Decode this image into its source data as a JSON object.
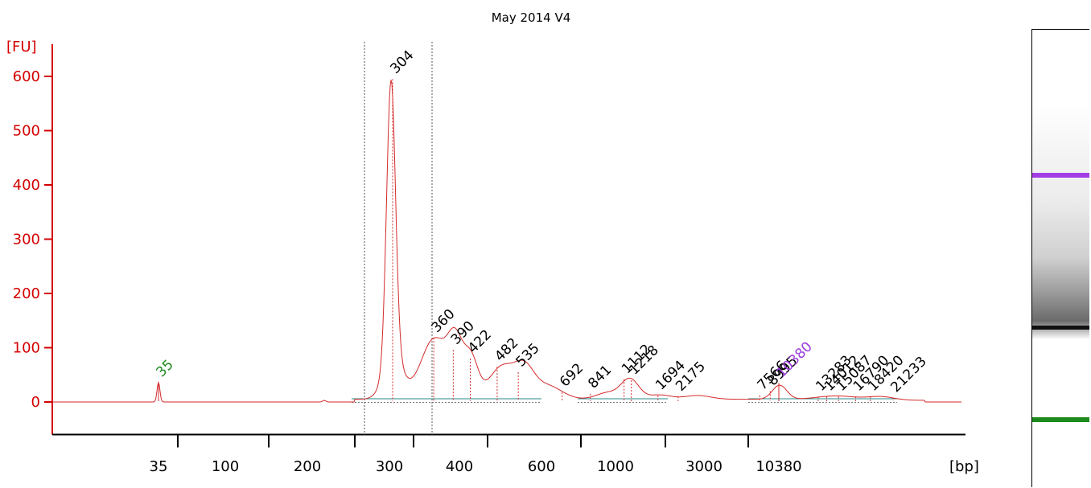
{
  "colors": {
    "axis": "#d40000",
    "trace": "#d42a2a",
    "baseline": "#2a8a8a",
    "marker_lower": "#1e8a1e",
    "marker_upper": "#9b3dde",
    "text": "#000000"
  },
  "chart_data": {
    "type": "line",
    "title": "May 2014 V4",
    "ylabel": "[FU]",
    "xlabel": "[bp]",
    "ylim": [
      -60,
      640
    ],
    "y_ticks": [
      0,
      100,
      200,
      300,
      400,
      500,
      600
    ],
    "x_tick_labels": [
      "35",
      "100",
      "200",
      "300",
      "400",
      "600",
      "1000",
      "3000",
      "10380"
    ],
    "x_scale": "ladder (non-linear, aligned to size standards)",
    "series": [
      {
        "x": [
          35,
          100,
          200,
          300,
          304,
          360,
          390,
          422,
          482,
          535,
          692,
          1000,
          1112,
          1218,
          1694,
          3000,
          8000,
          10380,
          13000,
          21233
        ],
        "y": [
          36,
          0,
          0,
          280,
          595,
          118,
          96,
          80,
          65,
          55,
          18,
          18,
          42,
          40,
          10,
          10,
          10,
          35,
          10,
          8
        ]
      }
    ],
    "peak_labels": [
      {
        "label": "35",
        "x": 35,
        "y": 36,
        "kind": "lower_marker"
      },
      {
        "label": "304",
        "x": 304,
        "y": 595,
        "kind": "peak"
      },
      {
        "label": "360",
        "x": 360,
        "y": 118,
        "kind": "peak"
      },
      {
        "label": "390",
        "x": 390,
        "y": 96,
        "kind": "peak"
      },
      {
        "label": "422",
        "x": 422,
        "y": 80,
        "kind": "peak"
      },
      {
        "label": "482",
        "x": 482,
        "y": 65,
        "kind": "peak"
      },
      {
        "label": "535",
        "x": 535,
        "y": 55,
        "kind": "peak"
      },
      {
        "label": "692",
        "x": 692,
        "y": 18,
        "kind": "peak"
      },
      {
        "label": "841",
        "x": 841,
        "y": 15,
        "kind": "peak"
      },
      {
        "label": "1112",
        "x": 1112,
        "y": 42,
        "kind": "peak"
      },
      {
        "label": "1218",
        "x": 1218,
        "y": 40,
        "kind": "peak"
      },
      {
        "label": "1694",
        "x": 1694,
        "y": 12,
        "kind": "peak"
      },
      {
        "label": "2175",
        "x": 2175,
        "y": 10,
        "kind": "peak"
      },
      {
        "label": "7566",
        "x": 7566,
        "y": 12,
        "kind": "peak"
      },
      {
        "label": "8995",
        "x": 8995,
        "y": 20,
        "kind": "peak"
      },
      {
        "label": "10380",
        "x": 10380,
        "y": 35,
        "kind": "upper_marker"
      },
      {
        "label": "13283",
        "x": 13283,
        "y": 10,
        "kind": "peak"
      },
      {
        "label": "14012",
        "x": 14012,
        "y": 10,
        "kind": "peak"
      },
      {
        "label": "15087",
        "x": 15087,
        "y": 10,
        "kind": "peak"
      },
      {
        "label": "16790",
        "x": 16790,
        "y": 10,
        "kind": "peak"
      },
      {
        "label": "18420",
        "x": 18420,
        "y": 10,
        "kind": "peak"
      },
      {
        "label": "21233",
        "x": 21233,
        "y": 8,
        "kind": "peak"
      }
    ],
    "grid": false,
    "legend": "none"
  },
  "gel": {
    "bands": [
      {
        "kind": "upper_marker"
      },
      {
        "kind": "sample_main"
      },
      {
        "kind": "lower_marker"
      }
    ]
  }
}
